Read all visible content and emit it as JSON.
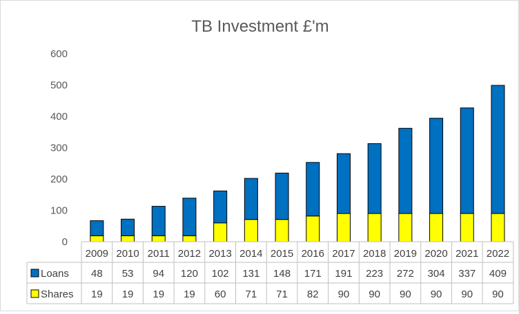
{
  "chart_data": {
    "type": "bar",
    "stacked": true,
    "title": "TB Investment £'m",
    "categories": [
      "2009",
      "2010",
      "2011",
      "2012",
      "2013",
      "2014",
      "2015",
      "2016",
      "2017",
      "2018",
      "2019",
      "2020",
      "2021",
      "2022"
    ],
    "series": [
      {
        "name": "Shares",
        "color": "#ffff00",
        "values": [
          19,
          19,
          19,
          19,
          60,
          71,
          71,
          82,
          90,
          90,
          90,
          90,
          90,
          90
        ]
      },
      {
        "name": "Loans",
        "color": "#0070c0",
        "values": [
          48,
          53,
          94,
          120,
          102,
          131,
          148,
          171,
          191,
          223,
          272,
          304,
          337,
          409
        ]
      }
    ],
    "table_row_order": [
      "Loans",
      "Shares"
    ],
    "y_ticks": [
      "0",
      "100",
      "200",
      "300",
      "400",
      "500",
      "600"
    ],
    "ylim": [
      0,
      600
    ],
    "grid": false,
    "data_table": true
  }
}
